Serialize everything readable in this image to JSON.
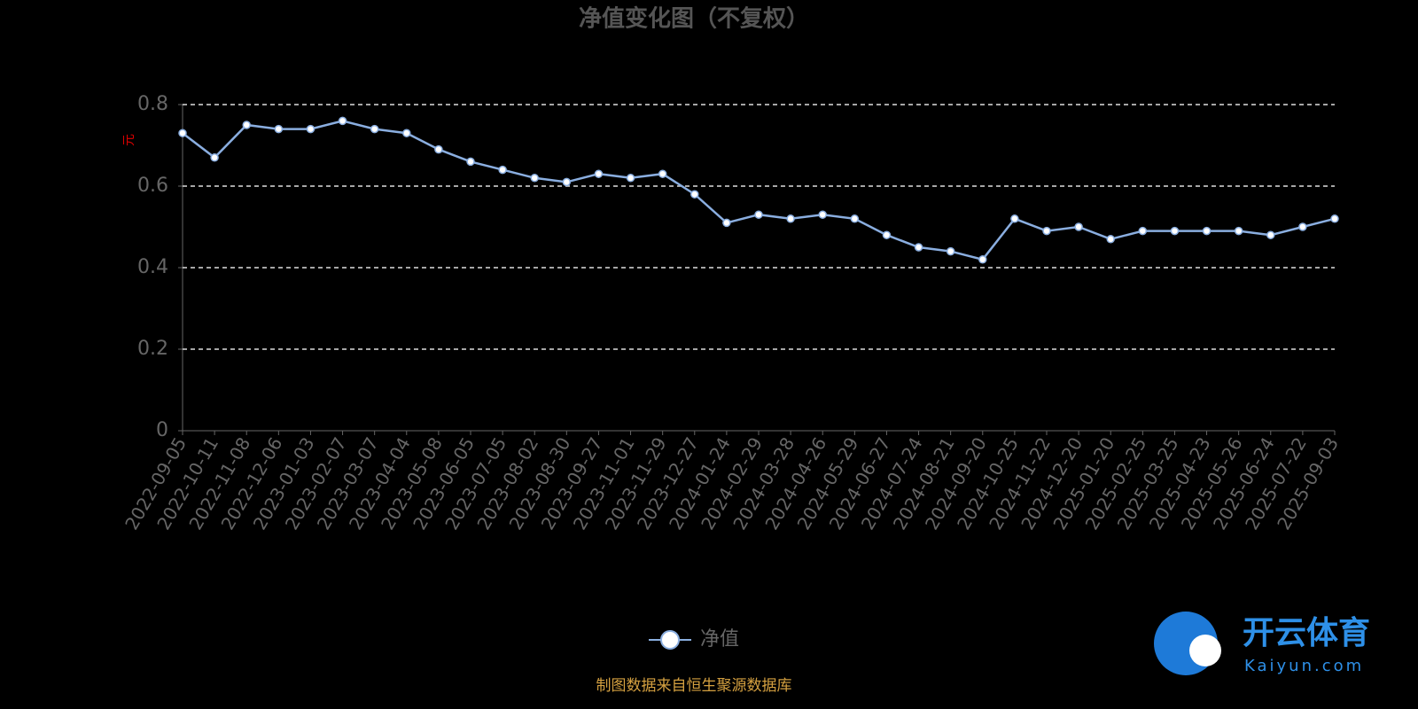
{
  "chart_data": {
    "type": "line",
    "title": "净值变化图（不复权）",
    "y_label": "元",
    "categories": [
      "2022-09-05",
      "2022-10-11",
      "2022-11-08",
      "2022-12-06",
      "2023-01-03",
      "2023-02-07",
      "2023-03-07",
      "2023-04-04",
      "2023-05-08",
      "2023-06-05",
      "2023-07-05",
      "2023-08-02",
      "2023-08-30",
      "2023-09-27",
      "2023-11-01",
      "2023-11-29",
      "2023-12-27",
      "2024-01-24",
      "2024-02-29",
      "2024-03-28",
      "2024-04-26",
      "2024-05-29",
      "2024-06-27",
      "2024-07-24",
      "2024-08-21",
      "2024-09-20",
      "2024-10-25",
      "2024-11-22",
      "2024-12-20",
      "2025-01-20",
      "2025-02-25",
      "2025-03-25",
      "2025-04-23",
      "2025-05-26",
      "2025-06-24",
      "2025-07-22",
      "2025-09-03"
    ],
    "series": [
      {
        "name": "净值",
        "color": "#8aaee0",
        "values": [
          0.73,
          0.67,
          0.75,
          0.74,
          0.74,
          0.76,
          0.74,
          0.73,
          0.69,
          0.66,
          0.64,
          0.62,
          0.61,
          0.63,
          0.62,
          0.63,
          0.58,
          0.51,
          0.53,
          0.52,
          0.53,
          0.52,
          0.48,
          0.45,
          0.44,
          0.42,
          0.52,
          0.49,
          0.5,
          0.47,
          0.49,
          0.49,
          0.49,
          0.49,
          0.48,
          0.5,
          0.52
        ]
      }
    ],
    "ylim": [
      0,
      0.8
    ],
    "yticks": [
      0,
      0.2,
      0.4,
      0.6,
      0.8
    ],
    "grid": true
  },
  "source": "制图数据来自恒生聚源数据库",
  "watermark": {
    "name": "开云体育",
    "site": "Kaiyun.com"
  }
}
